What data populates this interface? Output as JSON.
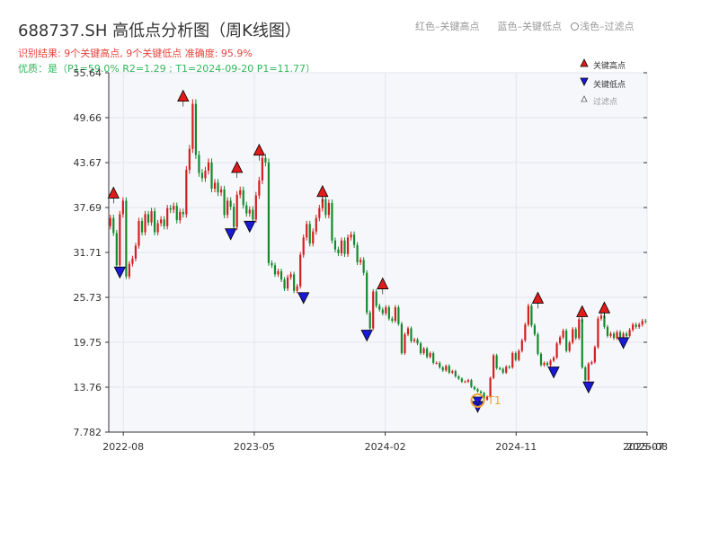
{
  "header": {
    "title": "688737.SH 高低点分析图（周K线图）",
    "result": "识别结果: 9个关键高点, 9个关键低点  准确度: 95.9%",
    "quality": "优质：是（P1=59.0%  R2=1.29 ; T1=2024-09-20 P1=11.77）"
  },
  "top_legend": {
    "red": "红色–关键高点",
    "blue": "蓝色–关键低点",
    "filtered": "浅色–过滤点"
  },
  "side_legend": {
    "high": "关键高点",
    "low": "关键低点",
    "filtered": "过滤点"
  },
  "colors": {
    "up": "#d21e1e",
    "down": "#128a2b",
    "high_marker": "#e11b1b",
    "low_marker": "#1a1ad6",
    "t1_ring": "#f0a030",
    "plot_bg": "#f6f7fb",
    "grid": "#e3e5ec"
  },
  "chart_data": {
    "type": "candlestick",
    "title": "688737.SH 高低点分析图（周K线图）",
    "y_ticks": [
      "7.782",
      "13.76",
      "19.75",
      "25.73",
      "31.71",
      "37.69",
      "43.67",
      "49.66",
      "55.64"
    ],
    "ylim": [
      7.782,
      55.64
    ],
    "x_ticks": [
      "2022-08",
      "2023-05",
      "2024-02",
      "2024-11",
      "2025-08"
    ],
    "x_tick_overlap_label": "2025-07",
    "x_range": [
      "2022-07",
      "2025-08"
    ],
    "grid": true,
    "candles_close": [
      36.3,
      34.3,
      30.0,
      36.8,
      38.6,
      28.5,
      30.2,
      30.9,
      32.6,
      35.9,
      34.4,
      36.8,
      35.7,
      37.2,
      34.4,
      35.6,
      36.1,
      35.2,
      37.6,
      37.4,
      37.9,
      36.0,
      37.1,
      36.8,
      42.7,
      45.5,
      51.5,
      44.7,
      42.3,
      41.6,
      42.6,
      43.7,
      40.2,
      41.0,
      39.7,
      40.1,
      36.7,
      38.6,
      37.8,
      35.1,
      39.4,
      40.0,
      38.0,
      36.9,
      37.4,
      36.1,
      39.3,
      41.3,
      44.3,
      43.7,
      30.3,
      30.0,
      28.8,
      29.2,
      28.1,
      26.9,
      28.4,
      28.8,
      26.6,
      27.2,
      31.4,
      33.7,
      35.5,
      32.9,
      34.5,
      36.3,
      37.6,
      38.8,
      36.7,
      38.3,
      33.3,
      32.1,
      31.6,
      33.3,
      31.5,
      33.7,
      34.1,
      32.7,
      30.4,
      30.7,
      29.0,
      23.7,
      21.6,
      26.5,
      24.6,
      24.1,
      23.6,
      24.4,
      22.9,
      22.6,
      24.4,
      22.2,
      18.3,
      20.8,
      21.6,
      19.9,
      20.1,
      19.6,
      18.3,
      18.9,
      17.8,
      18.3,
      17.0,
      17.0,
      16.4,
      16.0,
      16.6,
      15.7,
      15.9,
      15.2,
      14.9,
      14.5,
      14.5,
      14.7,
      13.8,
      13.5,
      13.2,
      13.0,
      12.1,
      12.5,
      15.0,
      18.0,
      16.3,
      16.2,
      15.7,
      16.5,
      16.4,
      18.3,
      17.4,
      18.6,
      20.0,
      22.1,
      24.6,
      22.0,
      20.8,
      18.2,
      16.7,
      17.0,
      16.7,
      17.3,
      17.7,
      19.6,
      20.4,
      21.3,
      18.6,
      19.7,
      21.5,
      20.3,
      22.8,
      16.4,
      14.7,
      16.9,
      17.1,
      19.1,
      22.9,
      23.3,
      21.8,
      20.6,
      20.9,
      20.3,
      21.1,
      20.3,
      20.9,
      20.6,
      21.4,
      22.1,
      21.8,
      22.1,
      22.6,
      22.5
    ],
    "key_highs": [
      {
        "i": 1,
        "price": 38.6
      },
      {
        "i": 23,
        "price": 51.5
      },
      {
        "i": 40,
        "price": 42.0
      },
      {
        "i": 47,
        "price": 44.3
      },
      {
        "i": 67,
        "price": 38.8
      },
      {
        "i": 86,
        "price": 26.5
      },
      {
        "i": 135,
        "price": 24.6
      },
      {
        "i": 149,
        "price": 22.8
      },
      {
        "i": 156,
        "price": 23.3
      }
    ],
    "key_lows": [
      {
        "i": 3,
        "price": 30.0
      },
      {
        "i": 38,
        "price": 35.1
      },
      {
        "i": 44,
        "price": 36.1
      },
      {
        "i": 61,
        "price": 26.6
      },
      {
        "i": 81,
        "price": 21.6
      },
      {
        "i": 116,
        "price": 12.1
      },
      {
        "i": 140,
        "price": 16.7
      },
      {
        "i": 151,
        "price": 14.7
      },
      {
        "i": 162,
        "price": 20.6
      }
    ],
    "t1": {
      "i": 116,
      "price": 12.1,
      "label": "T1"
    }
  }
}
